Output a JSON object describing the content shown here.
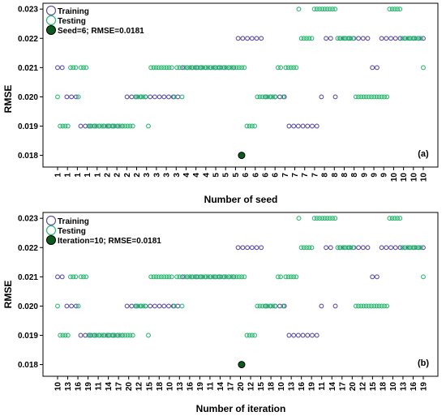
{
  "chart_data": [
    {
      "type": "scatter",
      "panel_label": "(a)",
      "ylabel": "RMSE",
      "xlabel": "Number of seed",
      "ylim": [
        0.0176,
        0.0232
      ],
      "yticks": [
        "0.018",
        "0.019",
        "0.020",
        "0.021",
        "0.022",
        "0.023"
      ],
      "ytick_values": [
        0.018,
        0.019,
        0.02,
        0.021,
        0.022,
        0.023
      ],
      "xtick_labels": [
        "1",
        "1",
        "1",
        "1",
        "1",
        "2",
        "2",
        "2",
        "2",
        "3",
        "3",
        "3",
        "3",
        "4",
        "4",
        "4",
        "5",
        "5",
        "5",
        "6",
        "6",
        "6",
        "6",
        "7",
        "7",
        "7",
        "7",
        "8",
        "8",
        "8",
        "8",
        "9",
        "9",
        "9",
        "10",
        "10",
        "10",
        "10"
      ],
      "legend": {
        "training": "Training",
        "testing": "Testing",
        "best": "Seed=6; RMSE=0.0181",
        "position": "top-left"
      },
      "colors": {
        "training": "#5b4fa8",
        "testing": "#2eb872",
        "best": "#0b5b1e"
      },
      "best_point": {
        "index": 41,
        "value": 0.018
      },
      "series": [
        {
          "name": "Training",
          "values": [
            0.021,
            0.021,
            0.02,
            0.02,
            0.02,
            0.019,
            0.019,
            0.019,
            0.019,
            0.019,
            0.019,
            0.019,
            0.019,
            0.019,
            0.019,
            0.02,
            0.02,
            0.02,
            0.02,
            0.02,
            0.02,
            0.02,
            0.02,
            0.02,
            0.02,
            0.02,
            0.02,
            0.021,
            0.021,
            0.021,
            0.021,
            0.021,
            0.021,
            0.021,
            0.021,
            0.021,
            0.021,
            0.021,
            0.021,
            0.022,
            0.022,
            0.022,
            0.022,
            0.022,
            0.022,
            0.02,
            0.02,
            0.02,
            0.02,
            0.02,
            0.019,
            0.019,
            0.019,
            0.019,
            0.019,
            0.019,
            0.019,
            0.02,
            0.022,
            0.022,
            0.02,
            0.022,
            0.022,
            0.022,
            0.022,
            0.022,
            0.022,
            0.022,
            0.021,
            0.021,
            0.022,
            0.022,
            0.022,
            0.022,
            0.022,
            0.022,
            0.022,
            0.022,
            0.022,
            0.022
          ]
        },
        {
          "name": "Testing",
          "values": [
            0.02,
            0.019,
            0.019,
            0.019,
            0.019,
            0.021,
            0.021,
            0.021,
            0.02,
            0.021,
            0.021,
            0.021,
            0.019,
            0.019,
            0.019,
            0.019,
            0.019,
            0.019,
            0.019,
            0.019,
            0.019,
            0.019,
            0.019,
            0.019,
            0.019,
            0.019,
            0.019,
            0.019,
            0.019,
            0.019,
            0.02,
            0.02,
            0.02,
            0.02,
            0.02,
            0.019,
            0.021,
            0.021,
            0.021,
            0.021,
            0.021,
            0.021,
            0.021,
            0.021,
            0.021,
            0.02,
            0.021,
            0.021,
            0.02,
            0.021,
            0.021,
            0.021,
            0.021,
            0.021,
            0.021,
            0.021,
            0.021,
            0.021,
            0.021,
            0.021,
            0.021,
            0.021,
            0.021,
            0.021,
            0.021,
            0.021,
            0.021,
            0.021,
            0.021,
            0.021,
            0.021,
            0.021,
            0.021,
            0.019,
            0.019,
            0.019,
            0.019,
            0.02,
            0.02,
            0.02,
            0.02,
            0.02,
            0.02,
            0.02,
            0.02,
            0.021,
            0.021,
            0.02,
            0.021,
            0.021,
            0.021,
            0.021,
            0.021,
            0.023,
            0.022,
            0.022,
            0.022,
            0.022,
            0.022,
            0.023,
            0.023,
            0.023,
            0.023,
            0.023,
            0.023,
            0.023,
            0.023,
            0.023,
            0.022,
            0.022,
            0.022,
            0.022,
            0.022,
            0.022,
            0.022,
            0.02,
            0.02,
            0.02,
            0.02,
            0.02,
            0.02,
            0.02,
            0.02,
            0.02,
            0.02,
            0.02,
            0.02,
            0.02,
            0.023,
            0.023,
            0.023,
            0.023,
            0.023,
            0.022,
            0.022,
            0.022,
            0.022,
            0.022,
            0.022,
            0.022,
            0.022,
            0.021
          ]
        }
      ]
    },
    {
      "type": "scatter",
      "panel_label": "(b)",
      "ylabel": "RMSE",
      "xlabel": "Number of iteration",
      "ylim": [
        0.0176,
        0.0232
      ],
      "yticks": [
        "0.018",
        "0.019",
        "0.020",
        "0.021",
        "0.022",
        "0.023"
      ],
      "ytick_values": [
        0.018,
        0.019,
        0.02,
        0.021,
        0.022,
        0.023
      ],
      "xtick_labels": [
        "10",
        "13",
        "16",
        "19",
        "11",
        "14",
        "17",
        "20",
        "12",
        "15",
        "18",
        "10",
        "13",
        "16",
        "19",
        "11",
        "14",
        "17",
        "20",
        "12",
        "15",
        "18",
        "10",
        "13",
        "16",
        "19",
        "11",
        "14",
        "17",
        "20",
        "12",
        "15",
        "18",
        "10",
        "13",
        "16",
        "19"
      ],
      "legend": {
        "training": "Training",
        "testing": "Testing",
        "best": "Iteration=10; RMSE=0.0181",
        "position": "top-left"
      },
      "colors": {
        "training": "#5b4fa8",
        "testing": "#2eb872",
        "best": "#0b5b1e"
      },
      "best_point": {
        "index": 41,
        "value": 0.018
      },
      "series": [
        {
          "name": "Training",
          "values": [
            0.021,
            0.021,
            0.02,
            0.02,
            0.02,
            0.019,
            0.019,
            0.019,
            0.019,
            0.019,
            0.019,
            0.019,
            0.019,
            0.019,
            0.019,
            0.02,
            0.02,
            0.02,
            0.02,
            0.02,
            0.02,
            0.02,
            0.02,
            0.02,
            0.02,
            0.02,
            0.02,
            0.021,
            0.021,
            0.021,
            0.021,
            0.021,
            0.021,
            0.021,
            0.021,
            0.021,
            0.021,
            0.021,
            0.021,
            0.022,
            0.022,
            0.022,
            0.022,
            0.022,
            0.022,
            0.02,
            0.02,
            0.02,
            0.02,
            0.02,
            0.019,
            0.019,
            0.019,
            0.019,
            0.019,
            0.019,
            0.019,
            0.02,
            0.022,
            0.022,
            0.02,
            0.022,
            0.022,
            0.022,
            0.022,
            0.022,
            0.022,
            0.022,
            0.021,
            0.021,
            0.022,
            0.022,
            0.022,
            0.022,
            0.022,
            0.022,
            0.022,
            0.022,
            0.022,
            0.022
          ]
        },
        {
          "name": "Testing",
          "values": [
            0.02,
            0.019,
            0.019,
            0.019,
            0.019,
            0.021,
            0.021,
            0.021,
            0.02,
            0.021,
            0.021,
            0.021,
            0.019,
            0.019,
            0.019,
            0.019,
            0.019,
            0.019,
            0.019,
            0.019,
            0.019,
            0.019,
            0.019,
            0.019,
            0.019,
            0.019,
            0.019,
            0.019,
            0.019,
            0.019,
            0.02,
            0.02,
            0.02,
            0.02,
            0.02,
            0.019,
            0.021,
            0.021,
            0.021,
            0.021,
            0.021,
            0.021,
            0.021,
            0.021,
            0.021,
            0.02,
            0.021,
            0.021,
            0.02,
            0.021,
            0.021,
            0.021,
            0.021,
            0.021,
            0.021,
            0.021,
            0.021,
            0.021,
            0.021,
            0.021,
            0.021,
            0.021,
            0.021,
            0.021,
            0.021,
            0.021,
            0.021,
            0.021,
            0.021,
            0.021,
            0.021,
            0.021,
            0.021,
            0.019,
            0.019,
            0.019,
            0.019,
            0.02,
            0.02,
            0.02,
            0.02,
            0.02,
            0.02,
            0.02,
            0.02,
            0.021,
            0.021,
            0.02,
            0.021,
            0.021,
            0.021,
            0.021,
            0.021,
            0.023,
            0.022,
            0.022,
            0.022,
            0.022,
            0.022,
            0.023,
            0.023,
            0.023,
            0.023,
            0.023,
            0.023,
            0.023,
            0.023,
            0.023,
            0.022,
            0.022,
            0.022,
            0.022,
            0.022,
            0.022,
            0.022,
            0.02,
            0.02,
            0.02,
            0.02,
            0.02,
            0.02,
            0.02,
            0.02,
            0.02,
            0.02,
            0.02,
            0.02,
            0.02,
            0.023,
            0.023,
            0.023,
            0.023,
            0.023,
            0.022,
            0.022,
            0.022,
            0.022,
            0.022,
            0.022,
            0.022,
            0.022,
            0.021
          ]
        }
      ]
    }
  ]
}
